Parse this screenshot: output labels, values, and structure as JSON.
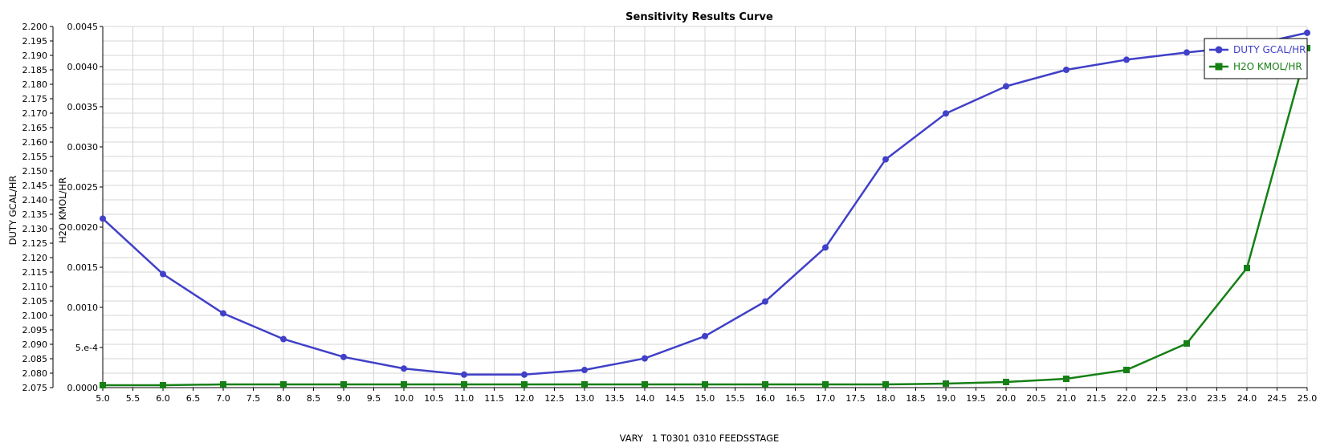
{
  "chart_data": {
    "type": "line",
    "title": "Sensitivity Results Curve",
    "xlabel": "VARY   1 T0301 0310 FEEDSSTAGE",
    "ylabel_left": "DUTY GCAL/HR",
    "ylabel_right": "H2O KMOL/HR",
    "xlim": [
      5.0,
      25.0
    ],
    "ylim_left": [
      2.075,
      2.2
    ],
    "ylim_right": [
      0.0,
      0.0045
    ],
    "x_ticks": [
      "5.0",
      "5.5",
      "6.0",
      "6.5",
      "7.0",
      "7.5",
      "8.0",
      "8.5",
      "9.0",
      "9.5",
      "10.0",
      "10.5",
      "11.0",
      "11.5",
      "12.0",
      "12.5",
      "13.0",
      "13.5",
      "14.0",
      "14.5",
      "15.0",
      "15.5",
      "16.0",
      "16.5",
      "17.0",
      "17.5",
      "18.0",
      "18.5",
      "19.0",
      "19.5",
      "20.0",
      "20.5",
      "21.0",
      "21.5",
      "22.0",
      "22.5",
      "23.0",
      "23.5",
      "24.0",
      "24.5",
      "25.0"
    ],
    "y_ticks_left": [
      "2.075",
      "2.080",
      "2.085",
      "2.090",
      "2.095",
      "2.100",
      "2.105",
      "2.110",
      "2.115",
      "2.120",
      "2.125",
      "2.130",
      "2.135",
      "2.140",
      "2.145",
      "2.150",
      "2.155",
      "2.160",
      "2.165",
      "2.170",
      "2.175",
      "2.180",
      "2.185",
      "2.190",
      "2.195",
      "2.200"
    ],
    "y_ticks_right": [
      "0.0000",
      "5.e-4",
      "0.0010",
      "0.0015",
      "0.0020",
      "0.0025",
      "0.0030",
      "0.0035",
      "0.0040",
      "0.0045"
    ],
    "grid": true,
    "legend_position": "top-right",
    "x": [
      5,
      6,
      7,
      8,
      9,
      10,
      11,
      12,
      13,
      14,
      15,
      16,
      17,
      18,
      19,
      20,
      21,
      22,
      23,
      24,
      25
    ],
    "series": [
      {
        "name": "DUTY GCAL/HR",
        "axis": "left",
        "marker": "circle",
        "color": "#4040c8",
        "values": [
          2.1335,
          2.1143,
          2.1007,
          2.0918,
          2.0856,
          2.0816,
          2.0795,
          2.0795,
          2.0811,
          2.0851,
          2.0928,
          2.1048,
          2.1235,
          2.154,
          2.1699,
          2.1793,
          2.185,
          2.1885,
          2.191,
          2.1932,
          2.1978
        ]
      },
      {
        "name": "H2O KMOL/HR",
        "axis": "right",
        "marker": "square",
        "color": "#168016",
        "values": [
          3e-05,
          3e-05,
          4e-05,
          4e-05,
          4e-05,
          4e-05,
          4e-05,
          4e-05,
          4e-05,
          4e-05,
          4e-05,
          4e-05,
          4e-05,
          4e-05,
          5e-05,
          7e-05,
          0.00011,
          0.00022,
          0.00055,
          0.00149,
          0.00423
        ]
      }
    ]
  }
}
